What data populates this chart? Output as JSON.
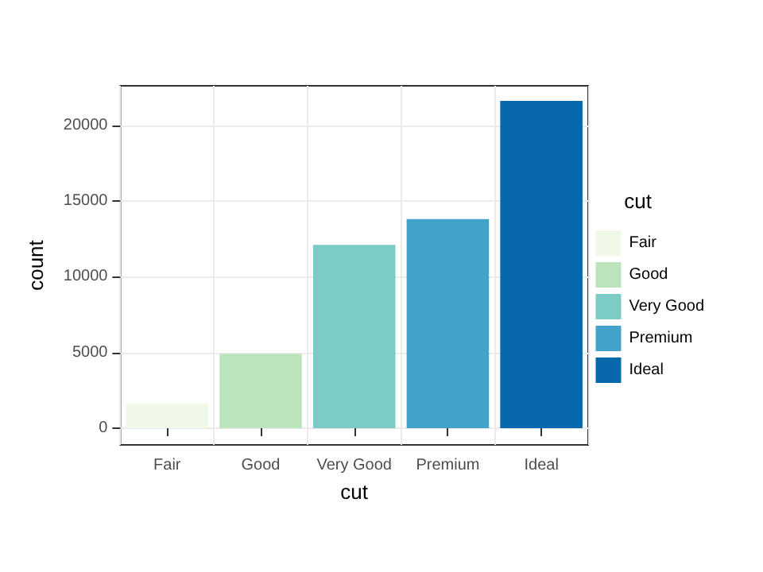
{
  "chart_data": {
    "type": "bar",
    "xlabel": "cut",
    "ylabel": "count",
    "legend_title": "cut",
    "categories": [
      "Fair",
      "Good",
      "Very Good",
      "Premium",
      "Ideal"
    ],
    "series": [
      {
        "name": "Fair",
        "color": "#f0f9e8",
        "values": [
          1600,
          null,
          null,
          null,
          null
        ]
      },
      {
        "name": "Good",
        "color": "#bae4bc",
        "values": [
          null,
          4900,
          null,
          null,
          null
        ]
      },
      {
        "name": "Very Good",
        "color": "#7bccc4",
        "values": [
          null,
          null,
          12100,
          null,
          null
        ]
      },
      {
        "name": "Premium",
        "color": "#43a2ca",
        "values": [
          null,
          null,
          null,
          13800,
          null
        ]
      },
      {
        "name": "Ideal",
        "color": "#0868ac",
        "values": [
          null,
          null,
          null,
          null,
          21600
        ]
      }
    ],
    "ylim": [
      -1100,
      22600
    ],
    "yticks": [
      0,
      5000,
      10000,
      15000,
      20000
    ],
    "grid": true,
    "legend": "right"
  }
}
